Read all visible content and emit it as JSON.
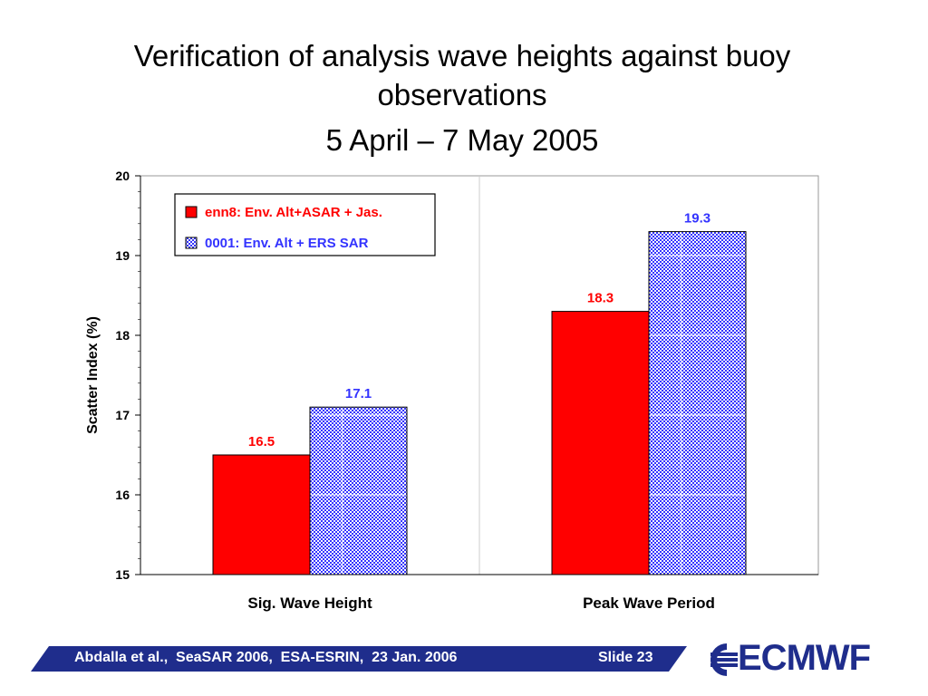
{
  "title_line1": "Verification of analysis wave heights against buoy",
  "title_line2": "observations",
  "subtitle": "5 April – 7 May 2005",
  "footer": {
    "citation": "Abdalla et al.,  SeaSAR 2006,  ESA-ESRIN,  23 Jan. 2006",
    "slide": "Slide 23"
  },
  "logo_text": "ECMWF",
  "colors": {
    "series_red": "#ff0000",
    "series_blue": "#3333ff",
    "footer_bar": "#1f2d8c"
  },
  "chart_data": {
    "type": "bar",
    "categories": [
      "Sig. Wave Height",
      "Peak Wave Period"
    ],
    "series": [
      {
        "name": "enn8: Env. Alt+ASAR + Jas.",
        "values": [
          16.5,
          18.3
        ],
        "color": "#ff0000",
        "pattern": "solid"
      },
      {
        "name": "0001: Env. Alt + ERS SAR",
        "values": [
          17.1,
          19.3
        ],
        "color": "#3333ff",
        "pattern": "checkered"
      }
    ],
    "data_labels": [
      [
        "16.5",
        "18.3"
      ],
      [
        "17.1",
        "19.3"
      ]
    ],
    "ylabel": "Scatter Index   (%)",
    "xlabel": "",
    "ylim": [
      15,
      20
    ],
    "yticks": [
      15,
      16,
      17,
      18,
      19,
      20
    ],
    "grid": true,
    "legend_position": "top-left"
  }
}
